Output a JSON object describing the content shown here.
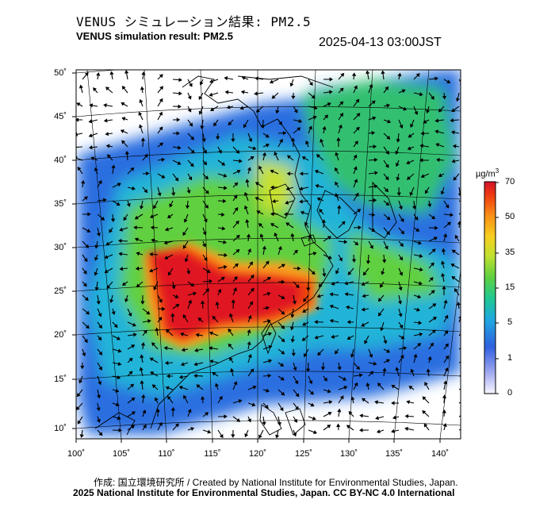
{
  "title_jp": "VENUS シミュレーション結果: PM2.5",
  "title_en": "VENUS simulation result: PM2.5",
  "timestamp": "2025-04-13 03:00JST",
  "credit_line1": "作成: 国立環境研究所 / Created by National Institute for Environmental Studies, Japan.",
  "credit_line2": "2025 National Institute for Environmental Studies, Japan. CC BY-NC 4.0 International",
  "map": {
    "lat_labels": [
      "50˚",
      "45˚",
      "40˚",
      "35˚",
      "30˚",
      "25˚",
      "20˚",
      "15˚",
      "10˚"
    ],
    "lon_labels": [
      "100˚",
      "105˚",
      "110˚",
      "115˚",
      "120˚",
      "125˚",
      "130˚",
      "135˚",
      "140˚"
    ],
    "lat_range": [
      10,
      50
    ],
    "lon_range": [
      100,
      140
    ]
  },
  "colorbar": {
    "unit": "µg/m",
    "unit_sup": "3",
    "ticks": [
      "70",
      "50",
      "35",
      "15",
      "5",
      "1",
      "0"
    ],
    "colors": [
      "#d4102a",
      "#f04010",
      "#f8a020",
      "#f0e040",
      "#80d040",
      "#20c070",
      "#30b0d8",
      "#2060e0",
      "#8090f0",
      "#f0f0ff"
    ]
  }
}
